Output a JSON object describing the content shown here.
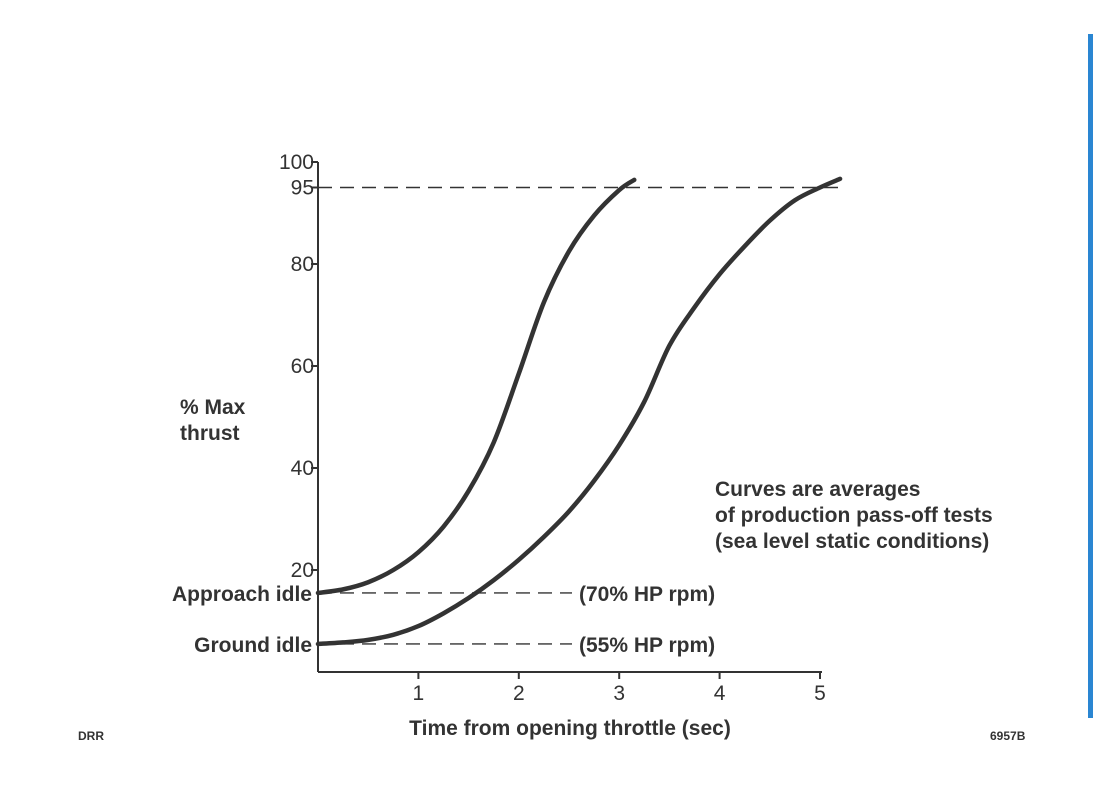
{
  "colors": {
    "ink": "#333333",
    "accent_bar": "#2a86d2"
  },
  "chart_data": {
    "type": "line",
    "ylabel_lines": [
      "% Max",
      "thrust"
    ],
    "xlabel": "Time from opening throttle (sec)",
    "x_ticks": [
      "1",
      "2",
      "3",
      "4",
      "5"
    ],
    "y_ticks": [
      "20",
      "40",
      "60",
      "80",
      "95",
      "100"
    ],
    "xlim": [
      0,
      5
    ],
    "ylim": [
      0,
      100
    ],
    "reference_lines": [
      {
        "label": "95",
        "y": 95,
        "x_end": 5.25
      }
    ],
    "idle_levels": [
      {
        "label": "Approach idle",
        "annotation": "(70% HP rpm)",
        "y": 15.5
      },
      {
        "label": "Ground idle",
        "annotation": "(55% HP rpm)",
        "y": 5.5
      }
    ],
    "note_lines": [
      "Curves are averages",
      "of production pass-off tests",
      "(sea level static conditions)"
    ],
    "series": [
      {
        "x": [
          0,
          0.25,
          0.5,
          0.75,
          1.0,
          1.25,
          1.5,
          1.75,
          2.0,
          2.25,
          2.5,
          2.75,
          3.0,
          3.15
        ],
        "y": [
          15.5,
          16.2,
          17.6,
          20.0,
          23.5,
          28.5,
          35.5,
          45.0,
          58.5,
          72.5,
          82.5,
          89.5,
          94.5,
          96.5
        ]
      },
      {
        "x": [
          0,
          0.25,
          0.5,
          0.75,
          1.0,
          1.25,
          1.5,
          1.75,
          2.0,
          2.25,
          2.5,
          2.75,
          3.0,
          3.25,
          3.5,
          3.75,
          4.0,
          4.25,
          4.5,
          4.75,
          5.0,
          5.2
        ],
        "y": [
          5.5,
          5.8,
          6.3,
          7.3,
          9.0,
          11.5,
          14.5,
          18.0,
          22.0,
          26.5,
          31.5,
          37.5,
          44.5,
          53.0,
          64.0,
          71.5,
          78.0,
          83.5,
          88.5,
          92.5,
          95.0,
          96.7
        ]
      }
    ]
  },
  "footer": {
    "left_code": "DRR",
    "right_code": "6957B"
  }
}
